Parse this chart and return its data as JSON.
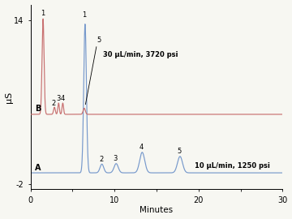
{
  "xlabel": "Minutes",
  "ylabel": "μS",
  "xlim": [
    0,
    30
  ],
  "ylim": [
    -2.5,
    15.5
  ],
  "ytick_vals": [
    -2,
    14
  ],
  "ytick_labels": [
    "-2",
    "14"
  ],
  "xtick_vals": [
    0,
    5,
    10,
    15,
    20,
    25,
    30
  ],
  "xtick_labels": [
    "0",
    "",
    "10",
    "",
    "20",
    "",
    "30"
  ],
  "color_B": "#c87070",
  "color_A": "#7799cc",
  "baseline_B": 4.8,
  "baseline_A": -0.9,
  "bg_color": "#f7f7f2",
  "annotation_B": "30 μL/min, 3720 psi",
  "annotation_A": "10 μL/min, 1250 psi",
  "peaks_B": [
    {
      "mu": 1.5,
      "sigma": 0.12,
      "amp": 9.3
    },
    {
      "mu": 2.85,
      "sigma": 0.1,
      "amp": 0.7
    },
    {
      "mu": 3.35,
      "sigma": 0.09,
      "amp": 1.1
    },
    {
      "mu": 3.85,
      "sigma": 0.09,
      "amp": 1.1
    },
    {
      "mu": 6.4,
      "sigma": 0.13,
      "amp": 0.6
    }
  ],
  "peaks_A": [
    {
      "mu": 6.5,
      "sigma": 0.16,
      "amp": 14.5
    },
    {
      "mu": 8.5,
      "sigma": 0.22,
      "amp": 0.85
    },
    {
      "mu": 10.2,
      "sigma": 0.25,
      "amp": 0.9
    },
    {
      "mu": 13.3,
      "sigma": 0.3,
      "amp": 2.0
    },
    {
      "mu": 17.8,
      "sigma": 0.3,
      "amp": 1.6
    }
  ]
}
